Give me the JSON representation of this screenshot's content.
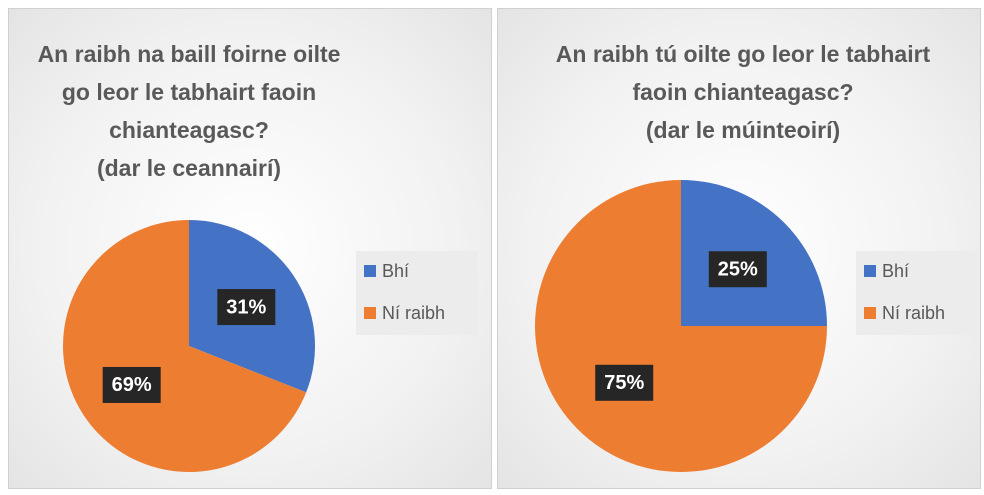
{
  "chart_data": [
    {
      "type": "pie",
      "title": "An raibh na baill foirne oilte go leor le tabhairt faoin chianteagasc?",
      "subtitle": "(dar le ceannairí)",
      "categories": [
        "Bhí",
        "Ní raibh"
      ],
      "values": [
        31,
        69
      ],
      "value_labels": [
        "31%",
        "69%"
      ],
      "colors": [
        "#4472c4",
        "#ed7d31"
      ],
      "legend": "right"
    },
    {
      "type": "pie",
      "title": "An raibh tú oilte go leor le tabhairt faoin chianteagasc?",
      "subtitle": "(dar le múinteoirí)",
      "categories": [
        "Bhí",
        "Ní raibh"
      ],
      "values": [
        25,
        75
      ],
      "value_labels": [
        "25%",
        "75%"
      ],
      "colors": [
        "#4472c4",
        "#ed7d31"
      ],
      "legend": "right"
    }
  ]
}
